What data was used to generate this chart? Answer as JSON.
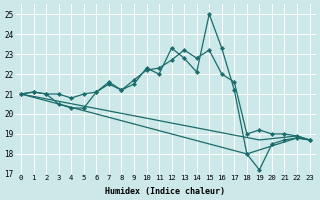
{
  "xlabel": "Humidex (Indice chaleur)",
  "xlim": [
    -0.5,
    23.5
  ],
  "ylim": [
    17,
    25.5
  ],
  "xticks": [
    0,
    1,
    2,
    3,
    4,
    5,
    6,
    7,
    8,
    9,
    10,
    11,
    12,
    13,
    14,
    15,
    16,
    17,
    18,
    19,
    20,
    21,
    22,
    23
  ],
  "yticks": [
    17,
    18,
    19,
    20,
    21,
    22,
    23,
    24,
    25
  ],
  "bg_color": "#cce8e8",
  "line_color": "#1a6b6b",
  "grid_color": "#b8d8d8",
  "lines": [
    {
      "x": [
        0,
        1,
        2,
        3,
        4,
        5,
        6,
        7,
        8,
        9,
        10,
        11,
        12,
        13,
        14,
        15,
        16,
        17,
        18,
        19,
        20,
        21,
        22,
        23
      ],
      "y": [
        21,
        21.1,
        21.0,
        21.0,
        20.8,
        21.0,
        21.1,
        21.5,
        21.2,
        21.5,
        22.3,
        22.0,
        23.3,
        22.8,
        22.1,
        25.0,
        23.3,
        21.2,
        18.0,
        17.2,
        18.5,
        18.7,
        18.8,
        18.7
      ],
      "has_markers": true
    },
    {
      "x": [
        0,
        1,
        2,
        3,
        4,
        5,
        6,
        7,
        8,
        9,
        10,
        11,
        12,
        13,
        14,
        15,
        16,
        17,
        18,
        19,
        20,
        21,
        22,
        23
      ],
      "y": [
        21.0,
        21.1,
        21.0,
        20.5,
        20.3,
        20.3,
        21.1,
        21.6,
        21.2,
        21.7,
        22.2,
        22.3,
        22.7,
        23.2,
        22.8,
        23.2,
        22.0,
        21.6,
        19.0,
        19.2,
        19.0,
        19.0,
        18.9,
        18.7
      ],
      "has_markers": true
    },
    {
      "x": [
        0,
        19,
        22,
        23
      ],
      "y": [
        21.0,
        18.7,
        18.9,
        18.7
      ],
      "has_markers": false
    },
    {
      "x": [
        0,
        18,
        22,
        23
      ],
      "y": [
        21.0,
        18.0,
        18.8,
        18.7
      ],
      "has_markers": false
    }
  ]
}
